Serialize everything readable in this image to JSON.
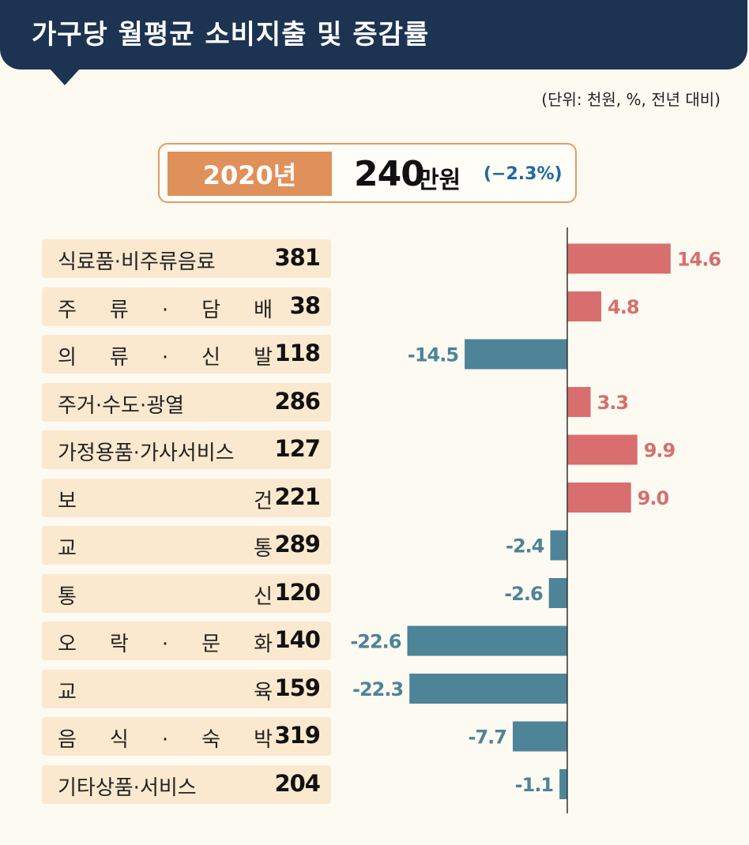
{
  "title": "가구당 월평균 소비지출 및 증감률",
  "unit_note": "(단위: 천원, %, 전년 대비)",
  "summary": {
    "year": "2020년",
    "value": "240",
    "unit": "만원",
    "change": "(−2.3%)"
  },
  "colors": {
    "title_bg": "#1d3352",
    "positive_bar": "#d86e6e",
    "negative_bar": "#4e8498",
    "label_bg": "#fbe9cf",
    "summary_accent": "#e0915a"
  },
  "chart_data": {
    "type": "bar",
    "orientation": "horizontal",
    "categories": [
      "식료품·비주류음료",
      "주 류 · 담 배",
      "의 류 · 신 발",
      "주거·수도·광열",
      "가정용품·가사서비스",
      "보 건",
      "교 통",
      "통 신",
      "오 락 · 문 화",
      "교 육",
      "음 식 · 숙 박",
      "기타상품·서비스"
    ],
    "amounts": [
      "381",
      "38",
      "118",
      "286",
      "127",
      "221",
      "289",
      "120",
      "140",
      "159",
      "319",
      "204"
    ],
    "values": [
      14.6,
      4.8,
      -14.5,
      3.3,
      9.9,
      9.0,
      -2.4,
      -2.6,
      -22.6,
      -22.3,
      -7.7,
      -1.1
    ],
    "value_labels": [
      "14.6",
      "4.8",
      "-14.5",
      "3.3",
      "9.9",
      "9.0",
      "-2.4",
      "-2.6",
      "-22.6",
      "-22.3",
      "-7.7",
      "-1.1"
    ]
  }
}
